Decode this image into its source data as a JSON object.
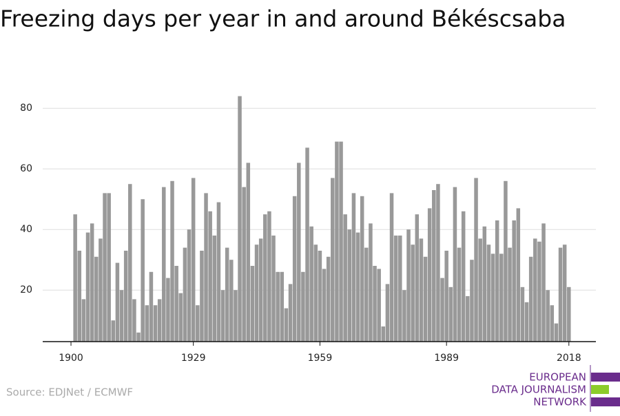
{
  "chart_data": {
    "type": "bar",
    "title": "Freezing days per year in and around Békéscsaba",
    "source": "Source: EDJNet / ECMWF",
    "logo": [
      "EUROPEAN",
      "DATA JOURNALISM",
      "NETWORK"
    ],
    "color": "#999999",
    "x": [
      1901,
      1902,
      1903,
      1904,
      1905,
      1906,
      1907,
      1908,
      1909,
      1910,
      1911,
      1912,
      1913,
      1914,
      1915,
      1916,
      1917,
      1918,
      1919,
      1920,
      1921,
      1922,
      1923,
      1924,
      1925,
      1926,
      1927,
      1928,
      1929,
      1930,
      1931,
      1932,
      1933,
      1934,
      1935,
      1936,
      1937,
      1938,
      1939,
      1940,
      1941,
      1942,
      1943,
      1944,
      1945,
      1946,
      1947,
      1948,
      1949,
      1950,
      1951,
      1952,
      1953,
      1954,
      1955,
      1956,
      1957,
      1958,
      1959,
      1960,
      1961,
      1962,
      1963,
      1964,
      1965,
      1966,
      1967,
      1968,
      1969,
      1970,
      1971,
      1972,
      1973,
      1974,
      1975,
      1976,
      1977,
      1978,
      1979,
      1980,
      1981,
      1982,
      1983,
      1984,
      1985,
      1986,
      1987,
      1988,
      1989,
      1990,
      1991,
      1992,
      1993,
      1994,
      1995,
      1996,
      1997,
      1998,
      1999,
      2000,
      2001,
      2002,
      2003,
      2004,
      2005,
      2006,
      2007,
      2008,
      2009,
      2010,
      2011,
      2012,
      2013,
      2014,
      2015,
      2016,
      2017,
      2018
    ],
    "values": [
      45,
      33,
      17,
      39,
      42,
      31,
      37,
      52,
      52,
      10,
      29,
      20,
      33,
      55,
      17,
      6,
      50,
      15,
      26,
      15,
      17,
      54,
      24,
      56,
      28,
      19,
      34,
      40,
      57,
      15,
      33,
      52,
      46,
      38,
      49,
      20,
      34,
      30,
      20,
      84,
      54,
      62,
      28,
      35,
      37,
      45,
      46,
      38,
      26,
      26,
      14,
      22,
      51,
      62,
      26,
      67,
      41,
      35,
      33,
      27,
      31,
      57,
      69,
      69,
      45,
      40,
      52,
      39,
      51,
      34,
      42,
      28,
      27,
      8,
      22,
      52,
      38,
      38,
      20,
      40,
      35,
      45,
      37,
      31,
      47,
      53,
      55,
      24,
      33,
      21,
      54,
      34,
      46,
      18,
      30,
      57,
      37,
      41,
      35,
      32,
      43,
      32,
      56,
      34,
      43,
      47,
      21,
      16,
      31,
      37,
      36,
      42,
      20,
      15,
      9,
      34,
      35,
      21
    ],
    "xlim": [
      1893.3,
      2024.4
    ],
    "xticks": [
      1900,
      1929,
      1959,
      1989,
      2018
    ],
    "ylim": [
      3,
      88
    ],
    "yticks": [
      20,
      40,
      60,
      80
    ],
    "grid": true
  }
}
